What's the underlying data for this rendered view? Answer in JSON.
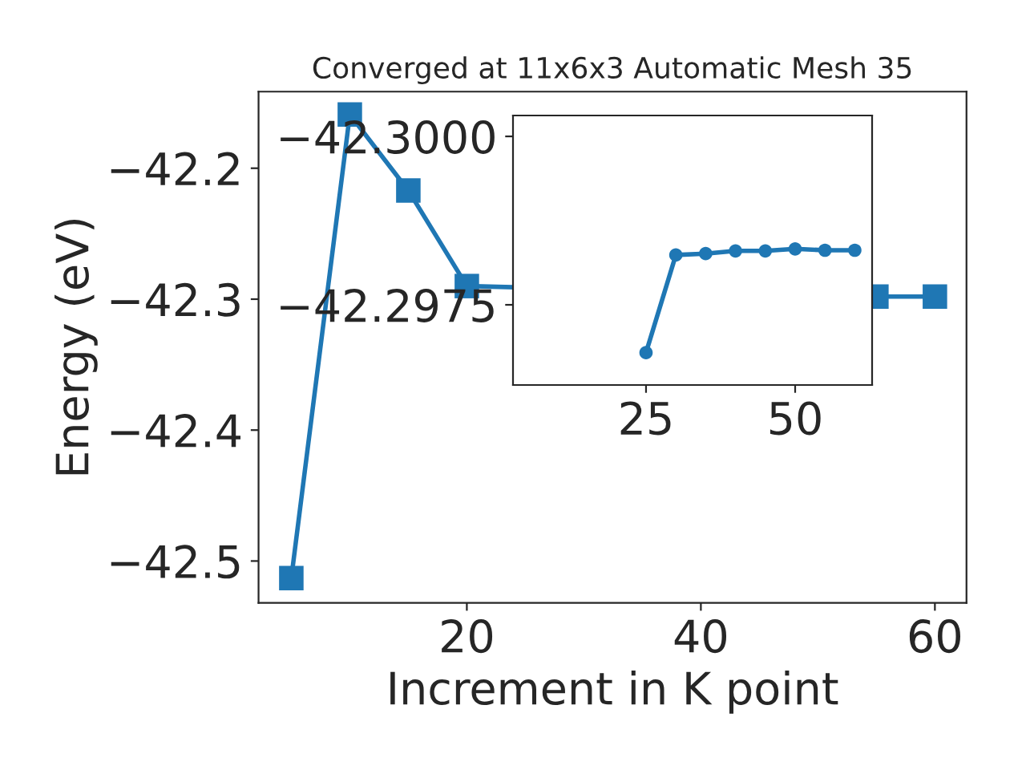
{
  "chart_data": [
    {
      "type": "line",
      "title": "Converged at 11x6x3 Automatic Mesh 35",
      "xlabel": "Increment in K point",
      "ylabel": "Energy (eV)",
      "x": [
        5,
        10,
        15,
        20,
        25,
        30,
        35,
        40,
        45,
        50,
        55,
        60
      ],
      "series": [
        {
          "color": "#1f77b4",
          "values": [
            -42.513,
            -42.159,
            -42.217,
            -42.29,
            null,
            null,
            null,
            null,
            null,
            null,
            -42.298,
            -42.298
          ]
        }
      ],
      "marker": "square",
      "xlim": [
        2.2,
        62.7
      ],
      "ylim": [
        -42.532,
        -42.1415
      ],
      "xticks": [
        20,
        40,
        60
      ],
      "yticks": [
        {
          "value": -42.5,
          "label": "−42.5"
        },
        {
          "value": -42.4,
          "label": "−42.4"
        },
        {
          "value": -42.3,
          "label": "−42.3"
        },
        {
          "value": -42.2,
          "label": "−42.2"
        }
      ],
      "grid": false,
      "legend": false
    },
    {
      "type": "line",
      "x": [
        25,
        30,
        35,
        40,
        45,
        50,
        55,
        60
      ],
      "series": [
        {
          "color": "#1f77b4",
          "values": [
            -42.29679,
            -42.29824,
            -42.29826,
            -42.2983,
            -42.2983,
            -42.29833,
            -42.29831,
            -42.29831
          ]
        }
      ],
      "marker": "circle",
      "xlim": [
        2.7,
        62.9
      ],
      "ylim": [
        -42.29631,
        -42.30031
      ],
      "xticks": [
        25,
        50
      ],
      "yticks": [
        {
          "value": -42.3,
          "label": "−42.3000"
        },
        {
          "value": -42.2975,
          "label": "−42.2975"
        }
      ],
      "grid": false,
      "legend": false
    }
  ]
}
